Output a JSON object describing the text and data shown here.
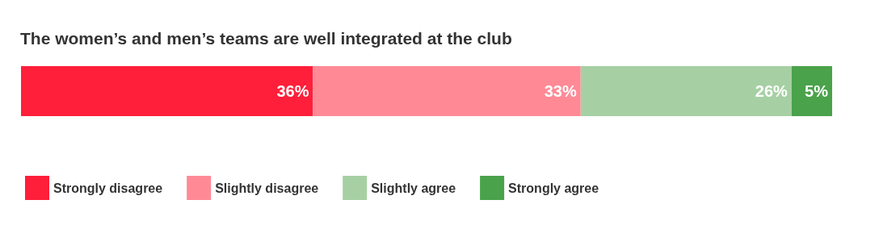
{
  "chart_data": {
    "type": "bar",
    "title": "The women’s and men’s teams are well integrated at the club",
    "orientation": "horizontal",
    "stacked": true,
    "categories": [
      null
    ],
    "legend": "bottom left",
    "series": [
      {
        "name": "Strongly disagree",
        "color": "#ff1f3a",
        "values": [
          36
        ],
        "value_labels": [
          "36%"
        ]
      },
      {
        "name": "Slightly disagree",
        "color": "#ff8a96",
        "values": [
          33
        ],
        "value_labels": [
          "33%"
        ]
      },
      {
        "name": "Slightly agree",
        "color": "#a6d0a4",
        "values": [
          26
        ],
        "value_labels": [
          "26%"
        ]
      },
      {
        "name": "Strongly agree",
        "color": "#4aa24a",
        "values": [
          5
        ],
        "value_labels": [
          "5%"
        ]
      }
    ]
  }
}
